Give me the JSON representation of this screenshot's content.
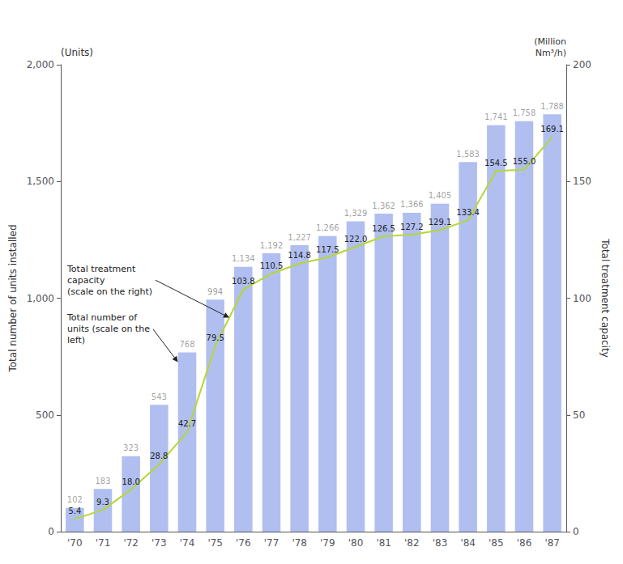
{
  "chart_data": {
    "type": "bar",
    "categories": [
      "'70",
      "'71",
      "'72",
      "'73",
      "'74",
      "'75",
      "'76",
      "'77",
      "'78",
      "'79",
      "'80",
      "'81",
      "'82",
      "'83",
      "'84",
      "'85",
      "'86",
      "'87"
    ],
    "series": [
      {
        "type": "bar",
        "values": [
          102,
          183,
          323,
          543,
          768,
          994,
          1134,
          1192,
          1227,
          1266,
          1329,
          1362,
          1366,
          1405,
          1583,
          1741,
          1758,
          1788
        ],
        "value_labels": [
          "102",
          "183",
          "323",
          "543",
          "768",
          "994",
          "1,134",
          "1,192",
          "1,227",
          "1,266",
          "1,329",
          "1,362",
          "1,366",
          "1,405",
          "1,583",
          "1,741",
          "1,758",
          "1,788"
        ]
      },
      {
        "type": "line",
        "axis": "y2",
        "values": [
          5.4,
          9.3,
          18.0,
          28.8,
          42.7,
          79.5,
          103.8,
          110.5,
          114.8,
          117.5,
          122.0,
          126.5,
          127.2,
          129.1,
          133.4,
          154.5,
          155.0,
          169.1
        ],
        "value_labels": [
          "5.4",
          "9.3",
          "18.0",
          "28.8",
          "42.7",
          "79.5",
          "103.8",
          "110.5",
          "114.8",
          "117.5",
          "122.0",
          "126.5",
          "127.2",
          "129.1",
          "133.4",
          "154.5",
          "155.0",
          "169.1"
        ]
      }
    ],
    "ylabel": "Total number of units installed",
    "y2label": "Total treatment capacity",
    "axis_units": {
      "y": "(Units)",
      "y2": "(Million\nNm³/h)"
    },
    "ylim": [
      0,
      2000
    ],
    "yticks": [
      0,
      500,
      {
        "value": 1000,
        "label": "1,000"
      },
      {
        "value": 1500,
        "label": "1,500"
      },
      {
        "value": 2000,
        "label": "2,000"
      }
    ],
    "y2lim": [
      0,
      200
    ],
    "y2ticks": [
      0,
      50,
      100,
      150,
      200
    ],
    "annotations": [
      {
        "text": "Total treatment\ncapacity\n(scale on the right)",
        "axis": "y2"
      },
      {
        "text": "Total number of\nunits (scale on the\nleft)",
        "axis": "y"
      }
    ],
    "grid": false,
    "data_labels": true
  }
}
